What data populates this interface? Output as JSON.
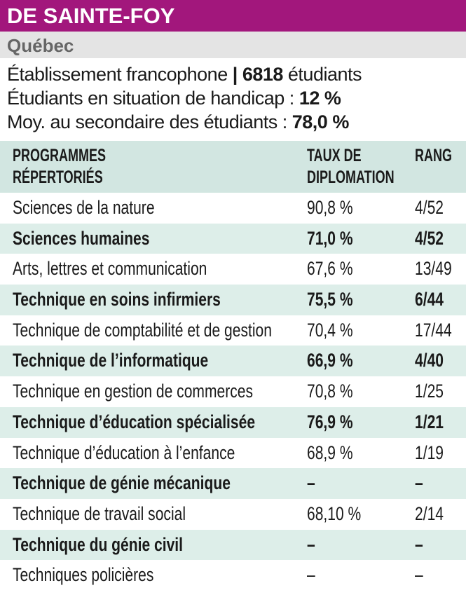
{
  "header": {
    "title": "DE SAINTE-FOY",
    "region": "Québec"
  },
  "info": [
    {
      "label": "Établissement francophone",
      "separator": "|",
      "value": "6818",
      "suffix": "étudiants"
    },
    {
      "label": "Étudiants en situation de handicap :",
      "value": "12 %"
    },
    {
      "label": "Moy. au secondaire des étudiants :",
      "value": "78,0 %"
    }
  ],
  "table": {
    "columns": [
      [
        "PROGRAMMES",
        "RÉPERTORIÉS"
      ],
      [
        "TAUX DE",
        "DIPLOMATION"
      ],
      [
        "RANG"
      ]
    ],
    "rows": [
      [
        "Sciences de la nature",
        "90,8 %",
        "4/52"
      ],
      [
        "Sciences humaines",
        "71,0 %",
        "4/52"
      ],
      [
        "Arts, lettres et communication",
        "67,6 %",
        "13/49"
      ],
      [
        "Technique en soins infirmiers",
        "75,5 %",
        "6/44"
      ],
      [
        "Technique de comptabilité et de gestion",
        "70,4 %",
        "17/44"
      ],
      [
        "Technique de l’informatique",
        "66,9 %",
        "4/40"
      ],
      [
        "Technique en gestion de commerces",
        "70,8 %",
        "1/25"
      ],
      [
        "Technique d’éducation spécialisée",
        "76,9 %",
        "1/21"
      ],
      [
        "Technique d’éducation à l’enfance",
        "68,9 %",
        "1/19"
      ],
      [
        "Technique de génie mécanique",
        "–",
        "–"
      ],
      [
        "Technique de travail social",
        "68,10 %",
        "2/14"
      ],
      [
        "Technique du génie civil",
        "–",
        "–"
      ],
      [
        "Techniques policières",
        "–",
        "–"
      ]
    ]
  }
}
